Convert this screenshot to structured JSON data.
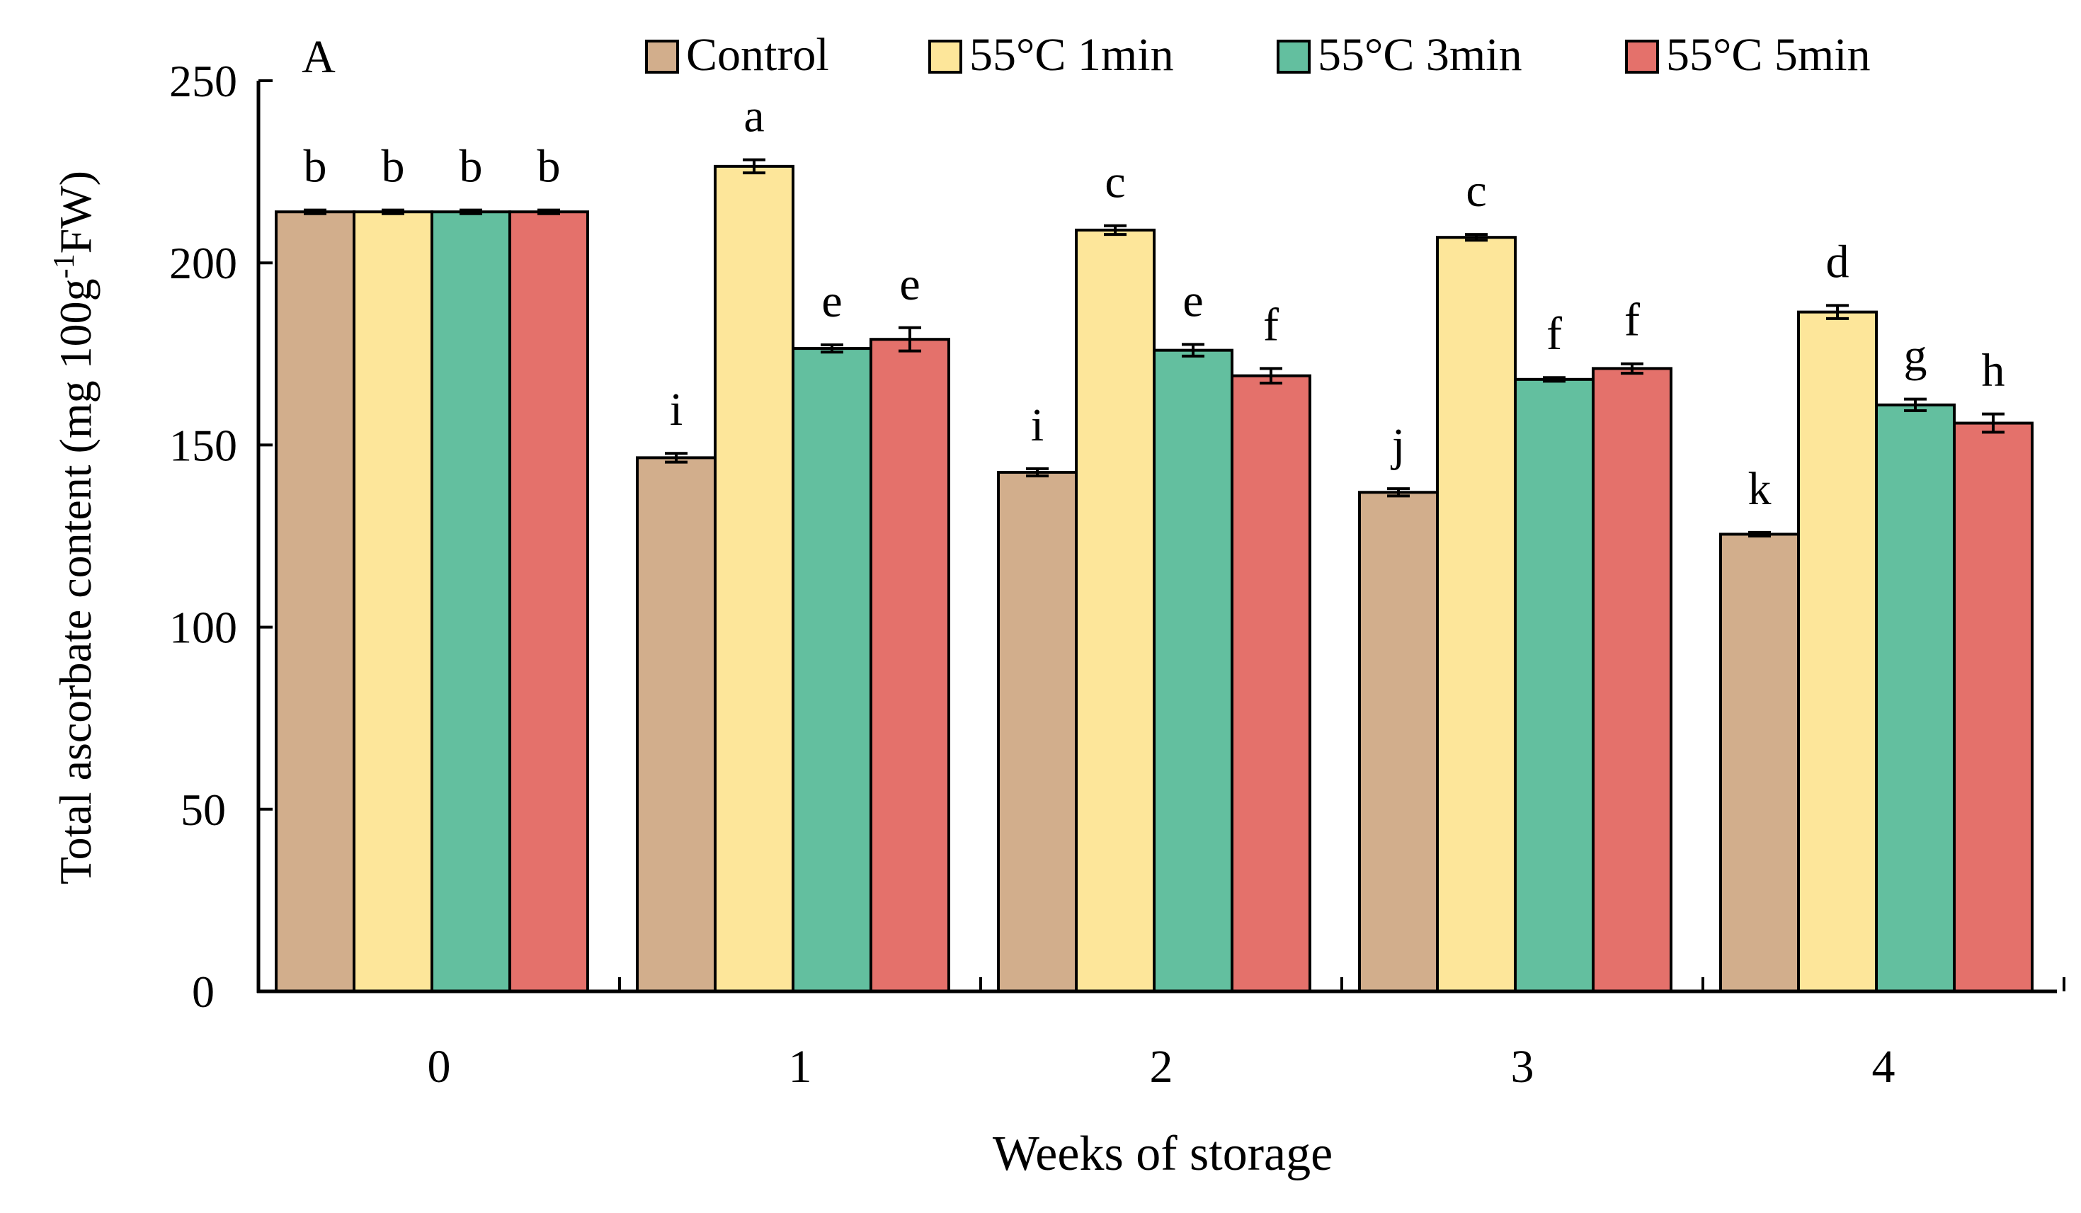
{
  "chart_data": {
    "type": "bar",
    "panel_label": "A",
    "title": "",
    "xlabel": "Weeks of storage",
    "ylabel": {
      "prefix": "Total ascorbate content (mg 100g",
      "superscript": "-1",
      "suffix": "FW)"
    },
    "ylim": [
      0,
      250
    ],
    "yticks": [
      "0",
      "50",
      "100",
      "150",
      "200",
      "250"
    ],
    "categories": [
      "0",
      "1",
      "2",
      "3",
      "4"
    ],
    "legend_position": "top",
    "grid": false,
    "series": [
      {
        "name": "Control",
        "color": "#d2ae8c",
        "values": [
          214,
          146.5,
          142.5,
          137,
          125.5
        ],
        "errors": [
          0.5,
          1.2,
          1.0,
          1.0,
          0.5
        ],
        "letters": [
          "b",
          "i",
          "i",
          "j",
          "k"
        ]
      },
      {
        "name": "55°C 1min",
        "color": "#fde69a",
        "values": [
          214,
          226.5,
          209,
          207,
          186.5
        ],
        "errors": [
          0.5,
          1.8,
          1.2,
          0.8,
          1.8
        ],
        "letters": [
          "b",
          "a",
          "c",
          "c",
          "d"
        ]
      },
      {
        "name": "55°C 3min",
        "color": "#63bf9f",
        "values": [
          214,
          176.5,
          176,
          168,
          161
        ],
        "errors": [
          0.5,
          1.0,
          1.6,
          0.5,
          1.6
        ],
        "letters": [
          "b",
          "e",
          "e",
          "f",
          "g"
        ]
      },
      {
        "name": "55°C 5min",
        "color": "#e4716b",
        "values": [
          214,
          179,
          169,
          171,
          156
        ],
        "errors": [
          0.5,
          3.2,
          2.0,
          1.3,
          2.5
        ],
        "letters": [
          "b",
          "e",
          "f",
          "f",
          "h"
        ]
      }
    ]
  }
}
